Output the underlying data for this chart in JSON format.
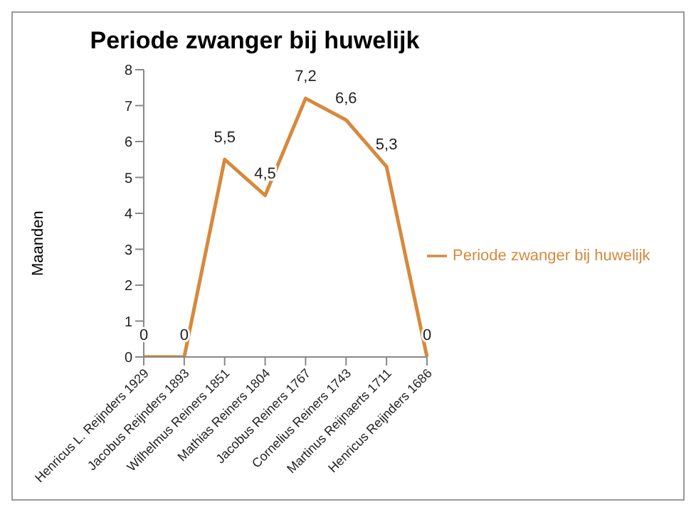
{
  "chart_data": {
    "type": "line",
    "title": "Periode zwanger bij huwelijk",
    "ylabel": "Maanden",
    "categories": [
      "Henricus L. Reijnders 1929",
      "Jacobus Reijnders 1893",
      "Wilhelmus Reiners 1851",
      "Mathias Reiners 1804",
      "Jacobus Reiners 1767",
      "Cornelius Reiners 1743",
      "Martinus Reijnaerts 1711",
      "Henricus Reijnders 1686"
    ],
    "series": [
      {
        "name": "Periode zwanger bij huwelijk",
        "color": "#d7893c",
        "values": [
          0,
          0,
          5.5,
          4.5,
          7.2,
          6.6,
          5.3,
          0
        ],
        "value_labels": [
          "0",
          "0",
          "5,5",
          "4,5",
          "7,2",
          "6,6",
          "5,3",
          "0"
        ]
      }
    ],
    "ylim": [
      0,
      8
    ],
    "yticks": [
      0,
      1,
      2,
      3,
      4,
      5,
      6,
      7,
      8
    ],
    "grid": false,
    "legend": "right",
    "marker": "none",
    "line_style": "solid"
  }
}
